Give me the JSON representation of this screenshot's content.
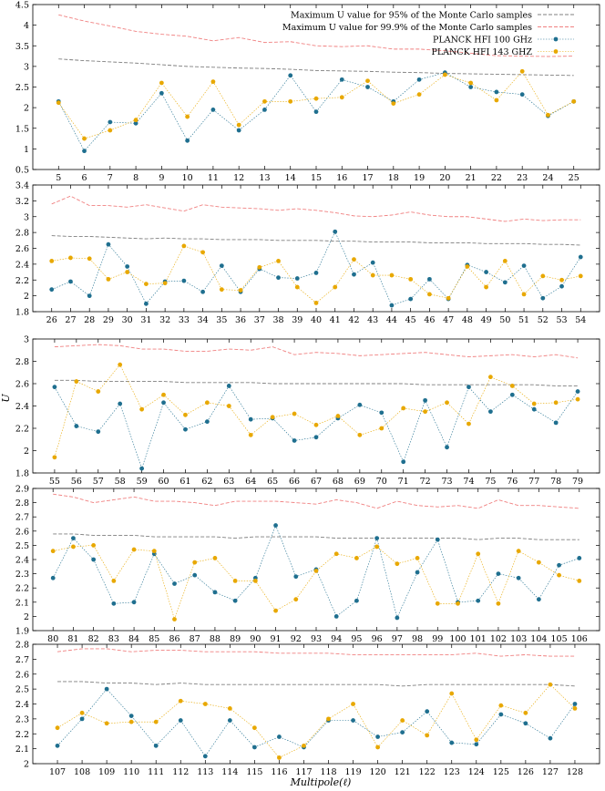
{
  "figure": {
    "ylabel": "U",
    "xlabel": "Multipole(ℓ)",
    "legend": [
      {
        "label": "Maximum U value for 95% of the Monte Carlo samples",
        "color": "#7f7f7f",
        "style": "dashed"
      },
      {
        "label": "Maximum U value for 99.9% of the Monte Carlo samples",
        "color": "#f08080",
        "style": "dashed"
      },
      {
        "label": "PLANCK HFI 100 GHz",
        "color": "#1f6f8f",
        "style": "points"
      },
      {
        "label": "PLANCK HFI 143 GHZ",
        "color": "#e8a800",
        "style": "points"
      }
    ]
  },
  "chart_data": [
    {
      "type": "line",
      "x": [
        5,
        6,
        7,
        8,
        9,
        10,
        11,
        12,
        13,
        14,
        15,
        16,
        17,
        18,
        19,
        20,
        21,
        22,
        23,
        24,
        25
      ],
      "ylim": [
        0.5,
        4.5
      ],
      "yticks": [
        0.5,
        1,
        1.5,
        2,
        2.5,
        3,
        3.5,
        4,
        4.5
      ],
      "legend": "top-right",
      "series": [
        {
          "name": "Maximum U value for 95% of the Monte Carlo samples",
          "values": [
            3.18,
            3.14,
            3.11,
            3.08,
            3.04,
            3.0,
            2.98,
            2.96,
            2.95,
            2.93,
            2.9,
            2.89,
            2.88,
            2.86,
            2.85,
            2.83,
            2.82,
            2.81,
            2.8,
            2.79,
            2.78
          ]
        },
        {
          "name": "Maximum U value for 99.9% of the Monte Carlo samples",
          "values": [
            4.25,
            4.1,
            3.98,
            3.85,
            3.78,
            3.73,
            3.62,
            3.7,
            3.58,
            3.6,
            3.5,
            3.48,
            3.5,
            3.42,
            3.42,
            3.38,
            3.32,
            3.26,
            3.25,
            3.24,
            3.25
          ]
        },
        {
          "name": "PLANCK HFI 100 GHz",
          "values": [
            2.15,
            0.95,
            1.65,
            1.62,
            2.35,
            1.2,
            1.95,
            1.45,
            1.95,
            2.78,
            1.9,
            2.68,
            2.5,
            2.15,
            2.68,
            2.85,
            2.5,
            2.38,
            2.32,
            1.8,
            2.15
          ]
        },
        {
          "name": "PLANCK HFI 143 GHZ",
          "values": [
            2.12,
            1.25,
            1.45,
            1.7,
            2.6,
            1.78,
            2.63,
            1.58,
            2.15,
            2.15,
            2.22,
            2.25,
            2.65,
            2.1,
            2.32,
            2.8,
            2.6,
            2.18,
            2.88,
            1.82,
            2.15
          ]
        }
      ]
    },
    {
      "type": "line",
      "x": [
        26,
        27,
        28,
        29,
        30,
        31,
        32,
        33,
        34,
        35,
        36,
        37,
        38,
        39,
        40,
        41,
        42,
        43,
        44,
        45,
        46,
        47,
        48,
        49,
        50,
        51,
        52,
        53,
        54
      ],
      "ylim": [
        1.8,
        3.4
      ],
      "yticks": [
        1.8,
        2,
        2.2,
        2.4,
        2.6,
        2.8,
        3,
        3.2,
        3.4
      ],
      "series": [
        {
          "name": "Maximum U value for 95% of the Monte Carlo samples",
          "values": [
            2.76,
            2.75,
            2.75,
            2.74,
            2.73,
            2.72,
            2.73,
            2.72,
            2.72,
            2.71,
            2.71,
            2.71,
            2.7,
            2.7,
            2.7,
            2.69,
            2.69,
            2.68,
            2.68,
            2.68,
            2.67,
            2.67,
            2.67,
            2.66,
            2.66,
            2.66,
            2.65,
            2.65,
            2.64
          ]
        },
        {
          "name": "Maximum U value for 99.9% of the Monte Carlo samples",
          "values": [
            3.16,
            3.26,
            3.14,
            3.14,
            3.12,
            3.15,
            3.11,
            3.07,
            3.15,
            3.12,
            3.11,
            3.1,
            3.08,
            3.1,
            3.08,
            3.05,
            3.01,
            3.0,
            3.02,
            3.06,
            3.02,
            3.0,
            3.0,
            2.97,
            2.94,
            2.97,
            2.95,
            2.96,
            2.96
          ]
        },
        {
          "name": "PLANCK HFI 100 GHz",
          "values": [
            2.08,
            2.18,
            2.0,
            2.65,
            2.37,
            1.9,
            2.18,
            2.19,
            2.05,
            2.38,
            2.05,
            2.34,
            2.23,
            2.22,
            2.29,
            2.81,
            2.27,
            2.42,
            1.88,
            1.96,
            2.21,
            1.96,
            2.39,
            2.3,
            2.17,
            2.38,
            1.97,
            2.12,
            2.49
          ]
        },
        {
          "name": "PLANCK HFI 143 GHZ",
          "values": [
            2.44,
            2.48,
            2.47,
            2.21,
            2.3,
            2.15,
            2.16,
            2.63,
            2.55,
            2.08,
            2.07,
            2.36,
            2.44,
            2.11,
            1.91,
            2.11,
            2.46,
            2.26,
            2.26,
            2.21,
            2.02,
            1.97,
            2.37,
            2.11,
            2.44,
            2.02,
            2.25,
            2.2,
            2.25
          ]
        }
      ]
    },
    {
      "type": "line",
      "x": [
        55,
        56,
        57,
        58,
        59,
        60,
        61,
        62,
        63,
        64,
        65,
        66,
        67,
        68,
        69,
        70,
        71,
        72,
        73,
        74,
        75,
        76,
        77,
        78,
        79
      ],
      "ylim": [
        1.8,
        3.0
      ],
      "yticks": [
        1.8,
        2,
        2.2,
        2.4,
        2.6,
        2.8,
        3
      ],
      "series": [
        {
          "name": "Maximum U value for 95% of the Monte Carlo samples",
          "values": [
            2.63,
            2.63,
            2.62,
            2.62,
            2.62,
            2.62,
            2.61,
            2.61,
            2.61,
            2.61,
            2.6,
            2.6,
            2.6,
            2.6,
            2.6,
            2.6,
            2.6,
            2.59,
            2.59,
            2.59,
            2.59,
            2.59,
            2.59,
            2.58,
            2.58
          ]
        },
        {
          "name": "Maximum U value for 99.9% of the Monte Carlo samples",
          "values": [
            2.93,
            2.94,
            2.95,
            2.94,
            2.91,
            2.91,
            2.89,
            2.89,
            2.91,
            2.9,
            2.93,
            2.86,
            2.88,
            2.87,
            2.85,
            2.86,
            2.87,
            2.88,
            2.86,
            2.84,
            2.85,
            2.86,
            2.84,
            2.86,
            2.83
          ]
        },
        {
          "name": "PLANCK HFI 100 GHz",
          "values": [
            2.57,
            2.22,
            2.17,
            2.42,
            1.84,
            2.43,
            2.19,
            2.26,
            2.58,
            2.28,
            2.29,
            2.09,
            2.12,
            2.29,
            2.41,
            2.34,
            1.9,
            2.45,
            2.03,
            2.57,
            2.35,
            2.5,
            2.37,
            2.25,
            2.53
          ]
        },
        {
          "name": "PLANCK HFI 143 GHZ",
          "values": [
            1.94,
            2.62,
            2.53,
            2.77,
            2.37,
            2.5,
            2.32,
            2.43,
            2.4,
            2.14,
            2.3,
            2.33,
            2.23,
            2.31,
            2.14,
            2.2,
            2.38,
            2.35,
            2.43,
            2.24,
            2.66,
            2.58,
            2.42,
            2.43,
            2.46
          ]
        }
      ]
    },
    {
      "type": "line",
      "x": [
        80,
        81,
        82,
        83,
        84,
        85,
        86,
        87,
        88,
        89,
        90,
        91,
        92,
        93,
        94,
        95,
        96,
        97,
        98,
        99,
        100,
        101,
        102,
        103,
        104,
        105,
        106
      ],
      "ylim": [
        1.9,
        2.9
      ],
      "yticks": [
        1.9,
        2,
        2.1,
        2.2,
        2.3,
        2.4,
        2.5,
        2.6,
        2.7,
        2.8,
        2.9
      ],
      "series": [
        {
          "name": "Maximum U value for 95% of the Monte Carlo samples",
          "values": [
            2.58,
            2.58,
            2.57,
            2.57,
            2.57,
            2.56,
            2.56,
            2.56,
            2.56,
            2.55,
            2.56,
            2.56,
            2.56,
            2.56,
            2.55,
            2.55,
            2.55,
            2.55,
            2.55,
            2.55,
            2.55,
            2.54,
            2.55,
            2.55,
            2.54,
            2.54,
            2.54
          ]
        },
        {
          "name": "Maximum U value for 99.9% of the Monte Carlo samples",
          "values": [
            2.86,
            2.84,
            2.8,
            2.82,
            2.84,
            2.81,
            2.81,
            2.8,
            2.78,
            2.81,
            2.81,
            2.81,
            2.8,
            2.79,
            2.82,
            2.8,
            2.76,
            2.81,
            2.78,
            2.77,
            2.78,
            2.76,
            2.82,
            2.78,
            2.78,
            2.77,
            2.76
          ]
        },
        {
          "name": "PLANCK HFI 100 GHz",
          "values": [
            2.27,
            2.55,
            2.4,
            2.09,
            2.1,
            2.44,
            2.23,
            2.29,
            2.17,
            2.11,
            2.27,
            2.64,
            2.28,
            2.33,
            2.0,
            2.11,
            2.55,
            1.99,
            2.31,
            2.54,
            2.1,
            2.11,
            2.3,
            2.27,
            2.12,
            2.36,
            2.41
          ]
        },
        {
          "name": "PLANCK HFI 143 GHZ",
          "values": [
            2.46,
            2.49,
            2.5,
            2.25,
            2.47,
            2.46,
            1.98,
            2.38,
            2.41,
            2.25,
            2.25,
            2.04,
            2.12,
            2.32,
            2.44,
            2.41,
            2.49,
            2.37,
            2.41,
            2.09,
            2.09,
            2.44,
            2.09,
            2.46,
            2.38,
            2.29,
            2.25
          ]
        }
      ]
    },
    {
      "type": "line",
      "x": [
        107,
        108,
        109,
        110,
        111,
        112,
        113,
        114,
        115,
        116,
        117,
        118,
        119,
        120,
        121,
        122,
        123,
        124,
        125,
        126,
        127,
        128
      ],
      "ylim": [
        2.0,
        2.8
      ],
      "yticks": [
        2,
        2.1,
        2.2,
        2.3,
        2.4,
        2.5,
        2.6,
        2.7,
        2.8
      ],
      "series": [
        {
          "name": "Maximum U value for 95% of the Monte Carlo samples",
          "values": [
            2.55,
            2.55,
            2.54,
            2.54,
            2.53,
            2.54,
            2.53,
            2.53,
            2.53,
            2.53,
            2.53,
            2.53,
            2.53,
            2.53,
            2.52,
            2.53,
            2.53,
            2.53,
            2.53,
            2.53,
            2.53,
            2.52
          ]
        },
        {
          "name": "Maximum U value for 99.9% of the Monte Carlo samples",
          "values": [
            2.75,
            2.77,
            2.77,
            2.75,
            2.76,
            2.76,
            2.75,
            2.75,
            2.75,
            2.74,
            2.74,
            2.74,
            2.73,
            2.73,
            2.73,
            2.73,
            2.73,
            2.74,
            2.72,
            2.73,
            2.72,
            2.72
          ]
        },
        {
          "name": "PLANCK HFI 100 GHz",
          "values": [
            2.12,
            2.3,
            2.5,
            2.32,
            2.12,
            2.29,
            2.05,
            2.29,
            2.11,
            2.18,
            2.11,
            2.29,
            2.29,
            2.18,
            2.21,
            2.35,
            2.14,
            2.13,
            2.33,
            2.27,
            2.17,
            2.4
          ]
        },
        {
          "name": "PLANCK HFI 143 GHZ",
          "values": [
            2.24,
            2.34,
            2.27,
            2.28,
            2.28,
            2.42,
            2.4,
            2.37,
            2.24,
            2.04,
            2.12,
            2.3,
            2.4,
            2.11,
            2.29,
            2.19,
            2.47,
            2.16,
            2.39,
            2.34,
            2.53,
            2.37
          ]
        }
      ]
    }
  ]
}
